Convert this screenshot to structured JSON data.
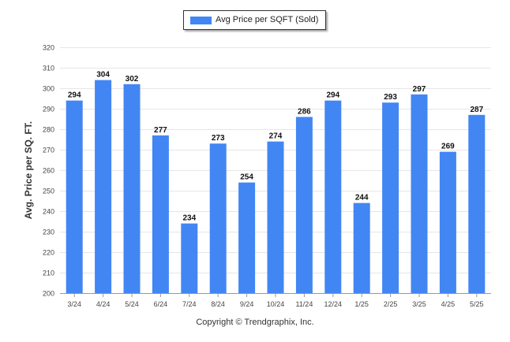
{
  "chart_data": {
    "type": "bar",
    "categories": [
      "3/24",
      "4/24",
      "5/24",
      "6/24",
      "7/24",
      "8/24",
      "9/24",
      "10/24",
      "11/24",
      "12/24",
      "1/25",
      "2/25",
      "3/25",
      "4/25",
      "5/25"
    ],
    "series": [
      {
        "name": "Avg Price per SQFT (Sold)",
        "values": [
          294,
          304,
          302,
          277,
          234,
          273,
          254,
          274,
          286,
          294,
          244,
          293,
          297,
          269,
          287
        ]
      }
    ],
    "ylabel": "Avg. Price per SQ. FT.",
    "ylim": [
      200,
      320
    ],
    "yticks": [
      200,
      210,
      220,
      230,
      240,
      250,
      260,
      270,
      280,
      290,
      300,
      310,
      320
    ],
    "grid": true,
    "legend_position": "top-center",
    "bar_color": "#4286f4"
  },
  "footer": {
    "copyright": "Copyright © Trendgraphix, Inc."
  }
}
